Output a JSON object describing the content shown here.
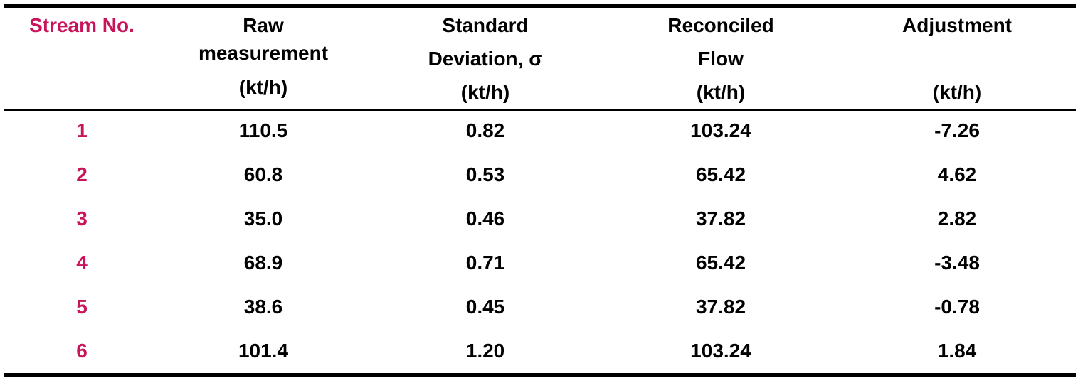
{
  "colors": {
    "stream_accent": "#c8145a",
    "text": "#000000",
    "rules": "#000000"
  },
  "table": {
    "headers": {
      "stream": "Stream No.",
      "raw_line1": "Raw",
      "raw_line2": "measurement",
      "raw_unit": "(kt/h)",
      "sd_line1": "Standard",
      "sd_line2": "Deviation, σ",
      "sd_unit": "(kt/h)",
      "rec_line1": "Reconciled",
      "rec_line2": "Flow",
      "rec_unit": "(kt/h)",
      "adj_line1": "Adjustment",
      "adj_unit": "(kt/h)"
    },
    "rows": [
      {
        "stream": "1",
        "raw": "110.5",
        "sd": "0.82",
        "reconciled": "103.24",
        "adjustment": "-7.26"
      },
      {
        "stream": "2",
        "raw": "60.8",
        "sd": "0.53",
        "reconciled": "65.42",
        "adjustment": "4.62"
      },
      {
        "stream": "3",
        "raw": "35.0",
        "sd": "0.46",
        "reconciled": "37.82",
        "adjustment": "2.82"
      },
      {
        "stream": "4",
        "raw": "68.9",
        "sd": "0.71",
        "reconciled": "65.42",
        "adjustment": "-3.48"
      },
      {
        "stream": "5",
        "raw": "38.6",
        "sd": "0.45",
        "reconciled": "37.82",
        "adjustment": "-0.78"
      },
      {
        "stream": "6",
        "raw": "101.4",
        "sd": "1.20",
        "reconciled": "103.24",
        "adjustment": "1.84"
      }
    ]
  }
}
